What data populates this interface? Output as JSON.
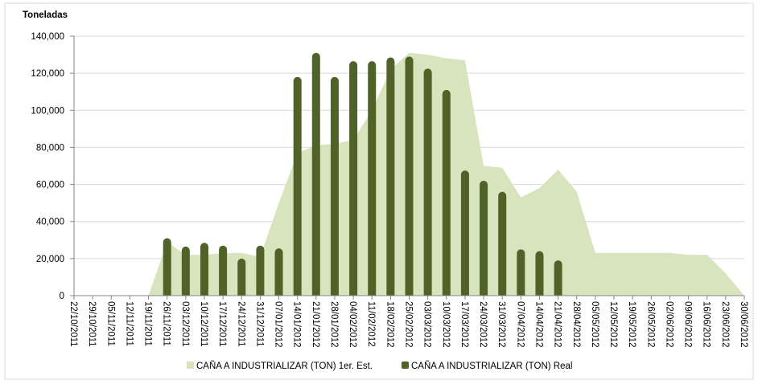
{
  "chart_data": {
    "type": "area-bar",
    "y_axis_title": "Toneladas",
    "categories": [
      "22/10/2011",
      "29/10/2011",
      "05/11/2011",
      "12/11/2011",
      "19/11/2011",
      "26/11/2011",
      "03/12/2011",
      "10/12/2011",
      "17/12/2011",
      "24/12/2011",
      "31/12/2011",
      "07/01/2012",
      "14/01/2012",
      "21/01/2012",
      "28/01/2012",
      "04/02/2012",
      "11/02/2012",
      "18/02/2012",
      "25/02/2012",
      "03/03/2012",
      "10/03/2012",
      "17/03/2012",
      "24/03/2012",
      "31/03/2012",
      "07/04/2012",
      "14/04/2012",
      "21/04/2012",
      "28/04/2012",
      "05/05/2012",
      "12/05/2012",
      "19/05/2012",
      "26/05/2012",
      "02/06/2012",
      "09/06/2012",
      "16/06/2012",
      "23/06/2012",
      "30/06/2012"
    ],
    "series": [
      {
        "name": "CAÑA A INDUSTRIALIZAR (TON) 1er. Est.",
        "type": "area",
        "color": "#d7e4bd",
        "values": [
          0,
          0,
          0,
          0,
          0,
          29000,
          22000,
          22000,
          23000,
          23000,
          21000,
          50000,
          77000,
          81000,
          82000,
          84000,
          100000,
          122000,
          131000,
          130000,
          128000,
          127000,
          70000,
          69000,
          53000,
          58000,
          68000,
          56000,
          23000,
          23000,
          23000,
          23000,
          23000,
          22000,
          22000,
          12000,
          0
        ]
      },
      {
        "name": "CAÑA A INDUSTRIALIZAR (TON) Real",
        "type": "bar",
        "color": "#4f6228",
        "values": [
          null,
          null,
          null,
          null,
          null,
          31000,
          26500,
          28500,
          27000,
          20000,
          27000,
          25500,
          118000,
          131000,
          118000,
          126500,
          126500,
          128500,
          129000,
          122500,
          111000,
          67500,
          62000,
          56000,
          25000,
          24000,
          19000,
          null,
          null,
          null,
          null,
          null,
          null,
          null,
          null,
          null,
          null
        ]
      }
    ],
    "ylim": [
      0,
      140000
    ],
    "yticks": [
      0,
      {
        "value": 20000,
        "label": "20,000"
      },
      {
        "value": 40000,
        "label": "40,000"
      },
      {
        "value": 60000,
        "label": "60,000"
      },
      {
        "value": 80000,
        "label": "80,000"
      },
      {
        "value": 100000,
        "label": "100,000"
      },
      {
        "value": 120000,
        "label": "120,000"
      },
      {
        "value": 140000,
        "label": "140,000"
      }
    ],
    "grid": true,
    "legend": "bottom"
  }
}
